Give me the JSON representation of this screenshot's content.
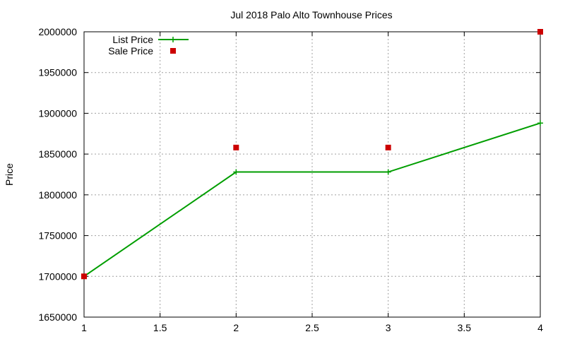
{
  "chart_data": {
    "type": "line",
    "title": "Jul 2018 Palo Alto Townhouse Prices",
    "xlabel": "",
    "ylabel": "Price",
    "xlim": [
      1,
      4
    ],
    "ylim": [
      1650000,
      2000000
    ],
    "x_ticks": [
      "1",
      "1.5",
      "2",
      "2.5",
      "3",
      "3.5",
      "4"
    ],
    "y_ticks": [
      "1650000",
      "1700000",
      "1750000",
      "1800000",
      "1850000",
      "1900000",
      "1950000",
      "2000000"
    ],
    "grid": true,
    "legend_position": "top-left",
    "series": [
      {
        "name": "List Price",
        "style": "line+cross",
        "color": "#009e00",
        "x": [
          1,
          2,
          3,
          4
        ],
        "y": [
          1700000,
          1828000,
          1828000,
          1888000
        ]
      },
      {
        "name": "Sale Price",
        "style": "square",
        "color": "#cc0000",
        "x": [
          1,
          2,
          3,
          4
        ],
        "y": [
          1700000,
          1858000,
          1858000,
          2000000
        ]
      }
    ]
  }
}
